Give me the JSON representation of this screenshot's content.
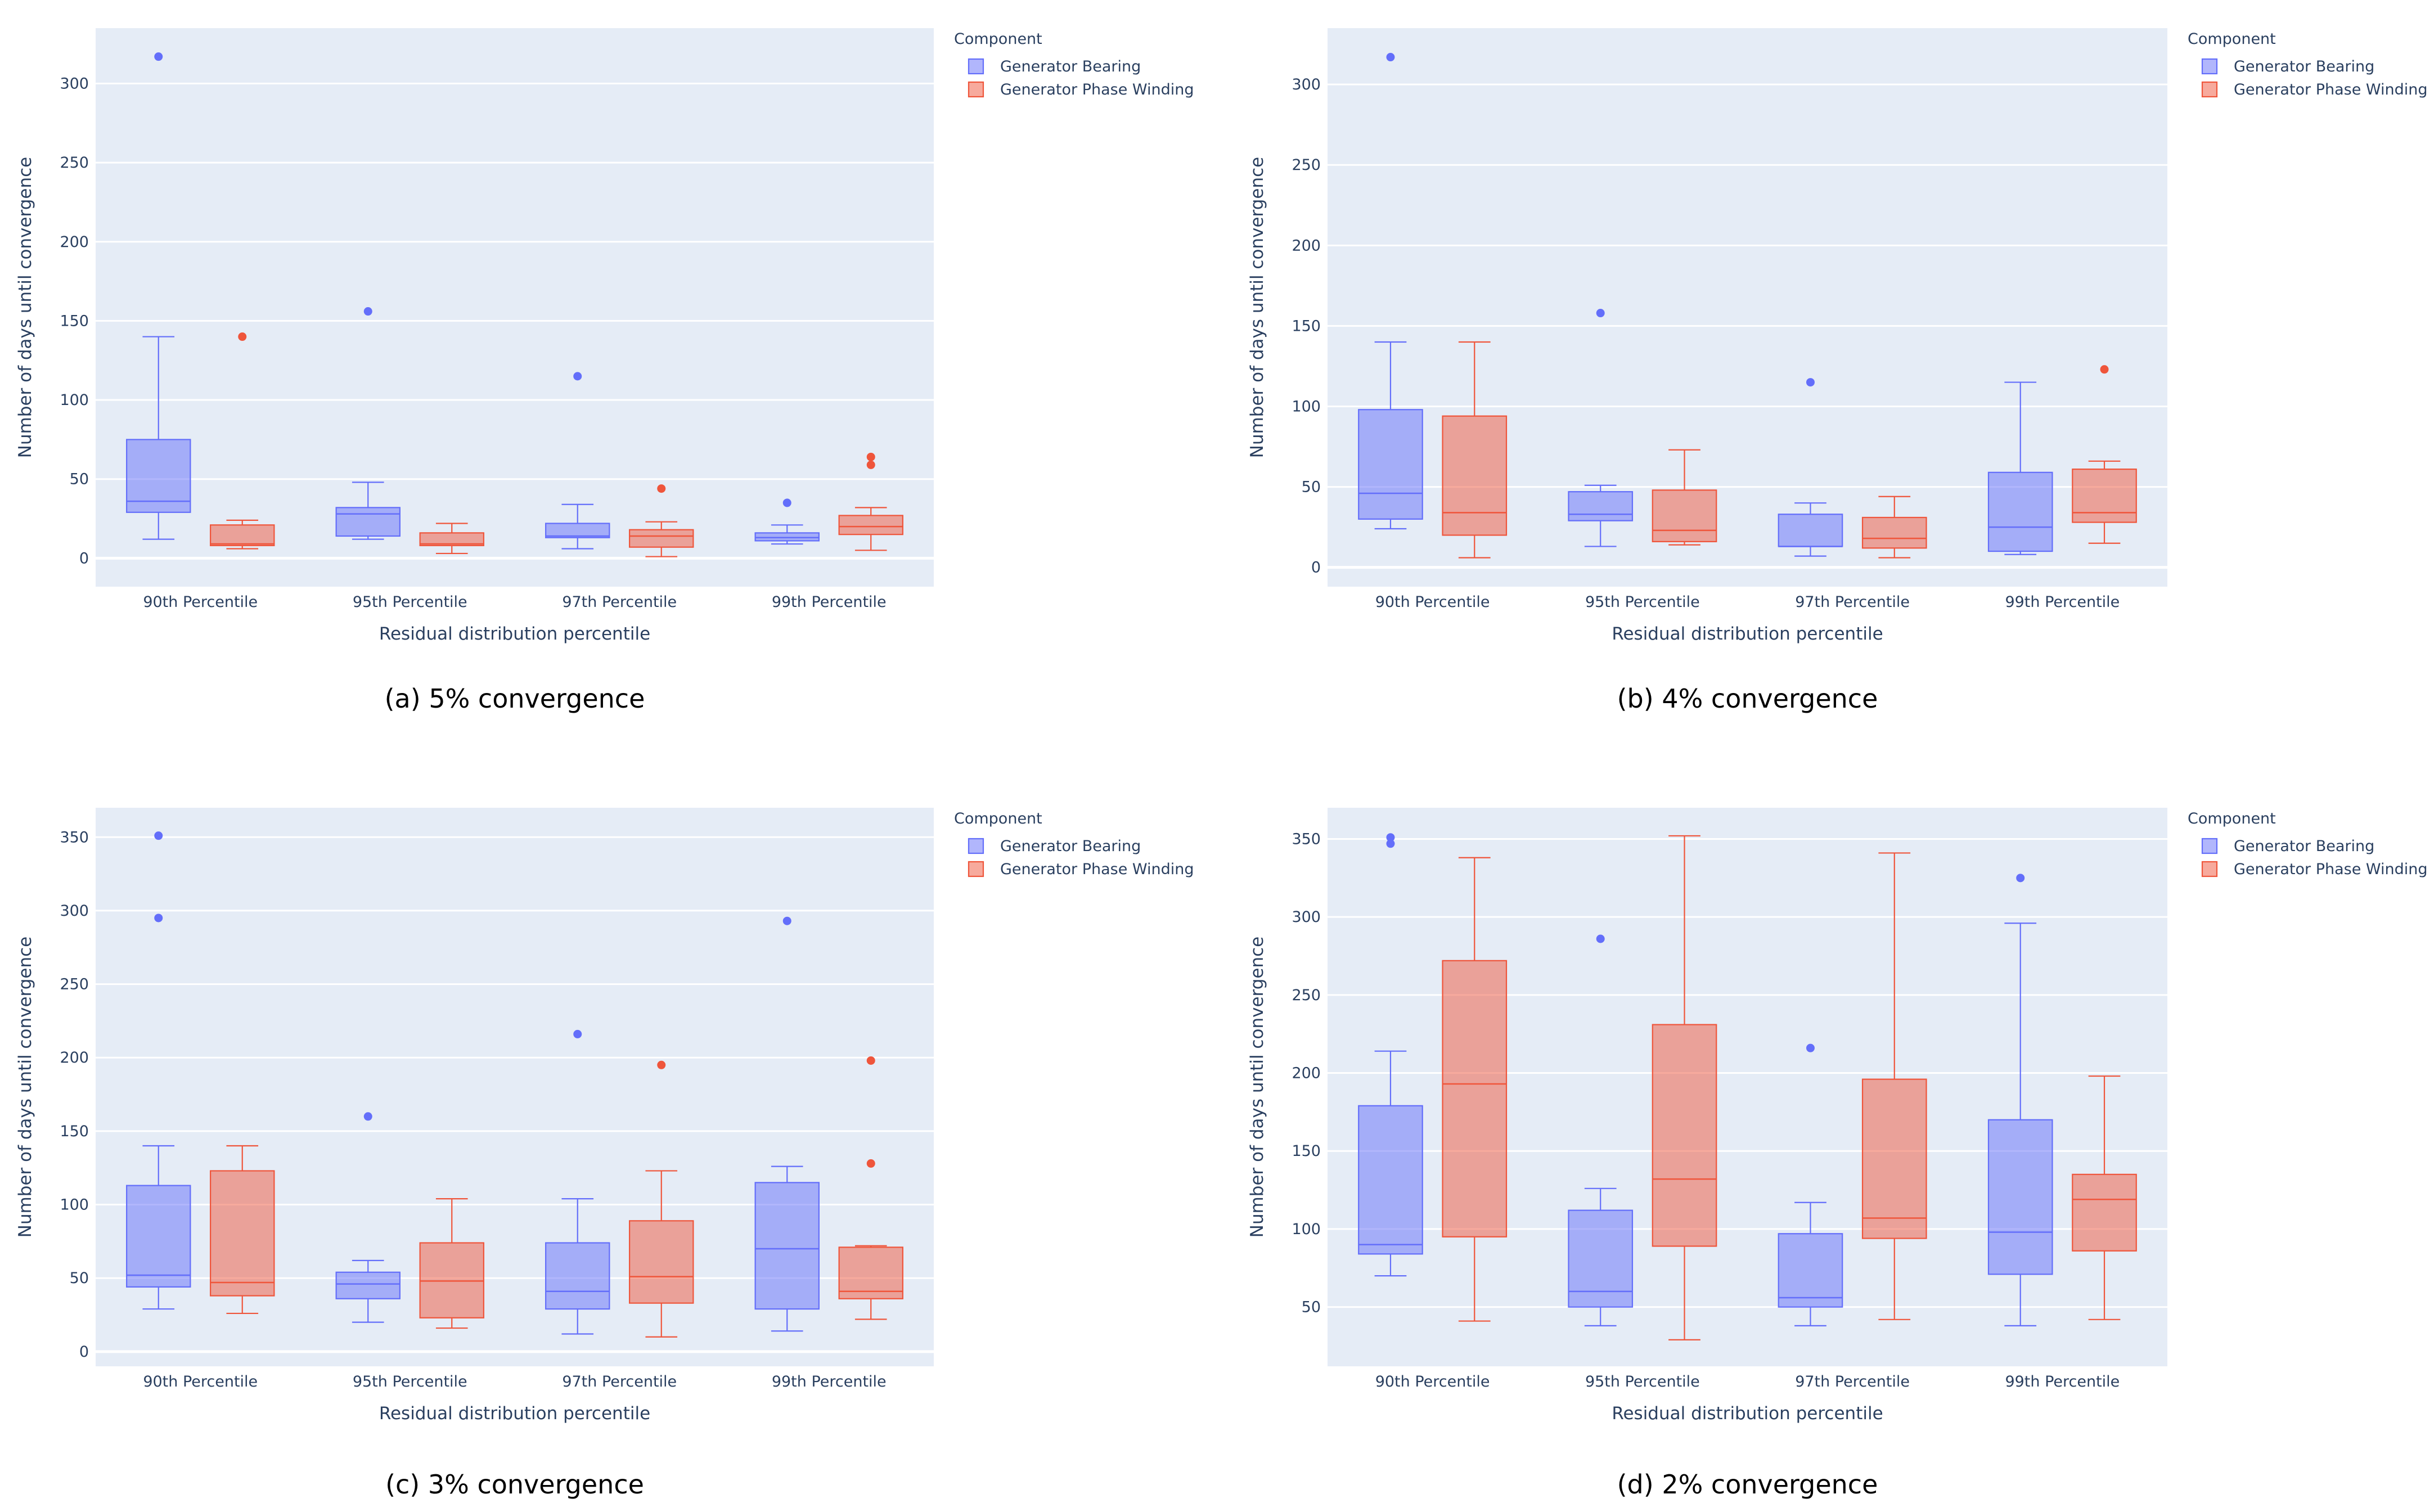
{
  "chart_data": [
    {
      "type": "box",
      "caption": "(a) 5% convergence",
      "xlabel": "Residual distribution percentile",
      "ylabel": "Number of days until convergence",
      "ylim": [
        -18,
        335
      ],
      "yticks": [
        0,
        50,
        100,
        150,
        200,
        250,
        300
      ],
      "categories": [
        "90th Percentile",
        "95th Percentile",
        "97th Percentile",
        "99th Percentile"
      ],
      "legend_title": "Component",
      "series": [
        {
          "name": "Generator Bearing",
          "color": "#636EFA",
          "boxes": [
            {
              "min": 12,
              "q1": 29,
              "median": 36,
              "q3": 75,
              "max": 140,
              "outliers": [
                317
              ]
            },
            {
              "min": 12,
              "q1": 14,
              "median": 28,
              "q3": 32,
              "max": 48,
              "outliers": [
                156
              ]
            },
            {
              "min": 6,
              "q1": 13,
              "median": 14,
              "q3": 22,
              "max": 34,
              "outliers": [
                115
              ]
            },
            {
              "min": 9,
              "q1": 11,
              "median": 13,
              "q3": 16,
              "max": 21,
              "outliers": [
                35
              ]
            }
          ]
        },
        {
          "name": "Generator Phase Winding",
          "color": "#EF553B",
          "boxes": [
            {
              "min": 6,
              "q1": 8,
              "median": 9,
              "q3": 21,
              "max": 24,
              "outliers": [
                140
              ]
            },
            {
              "min": 3,
              "q1": 8,
              "median": 9,
              "q3": 16,
              "max": 22,
              "outliers": []
            },
            {
              "min": 1,
              "q1": 7,
              "median": 14,
              "q3": 18,
              "max": 23,
              "outliers": [
                44
              ]
            },
            {
              "min": 5,
              "q1": 15,
              "median": 20,
              "q3": 27,
              "max": 32,
              "outliers": [
                59,
                64
              ]
            }
          ]
        }
      ]
    },
    {
      "type": "box",
      "caption": "(b) 4% convergence",
      "xlabel": "Residual distribution percentile",
      "ylabel": "Number of days until convergence",
      "ylim": [
        -12,
        335
      ],
      "yticks": [
        0,
        50,
        100,
        150,
        200,
        250,
        300
      ],
      "categories": [
        "90th Percentile",
        "95th Percentile",
        "97th Percentile",
        "99th Percentile"
      ],
      "legend_title": "Component",
      "series": [
        {
          "name": "Generator Bearing",
          "color": "#636EFA",
          "boxes": [
            {
              "min": 24,
              "q1": 30,
              "median": 46,
              "q3": 98,
              "max": 140,
              "outliers": [
                317
              ]
            },
            {
              "min": 13,
              "q1": 29,
              "median": 33,
              "q3": 47,
              "max": 51,
              "outliers": [
                158
              ]
            },
            {
              "min": 7,
              "q1": 13,
              "median": 13,
              "q3": 33,
              "max": 40,
              "outliers": [
                115
              ]
            },
            {
              "min": 8,
              "q1": 10,
              "median": 25,
              "q3": 59,
              "max": 115,
              "outliers": []
            }
          ]
        },
        {
          "name": "Generator Phase Winding",
          "color": "#EF553B",
          "boxes": [
            {
              "min": 6,
              "q1": 20,
              "median": 34,
              "q3": 94,
              "max": 140,
              "outliers": []
            },
            {
              "min": 14,
              "q1": 16,
              "median": 23,
              "q3": 48,
              "max": 73,
              "outliers": []
            },
            {
              "min": 6,
              "q1": 12,
              "median": 18,
              "q3": 31,
              "max": 44,
              "outliers": []
            },
            {
              "min": 15,
              "q1": 28,
              "median": 34,
              "q3": 61,
              "max": 66,
              "outliers": [
                123
              ]
            }
          ]
        }
      ]
    },
    {
      "type": "box",
      "caption": "(c) 3% convergence",
      "xlabel": "Residual distribution percentile",
      "ylabel": "Number of days until convergence",
      "ylim": [
        -10,
        370
      ],
      "yticks": [
        0,
        50,
        100,
        150,
        200,
        250,
        300,
        350
      ],
      "categories": [
        "90th Percentile",
        "95th Percentile",
        "97th Percentile",
        "99th Percentile"
      ],
      "legend_title": "Component",
      "series": [
        {
          "name": "Generator Bearing",
          "color": "#636EFA",
          "boxes": [
            {
              "min": 29,
              "q1": 44,
              "median": 52,
              "q3": 113,
              "max": 140,
              "outliers": [
                295,
                351
              ]
            },
            {
              "min": 20,
              "q1": 36,
              "median": 46,
              "q3": 54,
              "max": 62,
              "outliers": [
                160
              ]
            },
            {
              "min": 12,
              "q1": 29,
              "median": 41,
              "q3": 74,
              "max": 104,
              "outliers": [
                216
              ]
            },
            {
              "min": 14,
              "q1": 29,
              "median": 70,
              "q3": 115,
              "max": 126,
              "outliers": [
                293
              ]
            }
          ]
        },
        {
          "name": "Generator Phase Winding",
          "color": "#EF553B",
          "boxes": [
            {
              "min": 26,
              "q1": 38,
              "median": 47,
              "q3": 123,
              "max": 140,
              "outliers": []
            },
            {
              "min": 16,
              "q1": 23,
              "median": 48,
              "q3": 74,
              "max": 104,
              "outliers": []
            },
            {
              "min": 10,
              "q1": 33,
              "median": 51,
              "q3": 89,
              "max": 123,
              "outliers": [
                195
              ]
            },
            {
              "min": 22,
              "q1": 36,
              "median": 41,
              "q3": 71,
              "max": 72,
              "outliers": [
                128,
                198
              ]
            }
          ]
        }
      ]
    },
    {
      "type": "box",
      "caption": "(d) 2% convergence",
      "xlabel": "Residual distribution percentile",
      "ylabel": "Number of days until convergence",
      "ylim": [
        12,
        370
      ],
      "yticks": [
        50,
        100,
        150,
        200,
        250,
        300,
        350
      ],
      "categories": [
        "90th Percentile",
        "95th Percentile",
        "97th Percentile",
        "99th Percentile"
      ],
      "legend_title": "Component",
      "series": [
        {
          "name": "Generator Bearing",
          "color": "#636EFA",
          "boxes": [
            {
              "min": 70,
              "q1": 84,
              "median": 90,
              "q3": 179,
              "max": 214,
              "outliers": [
                347,
                351
              ]
            },
            {
              "min": 38,
              "q1": 50,
              "median": 60,
              "q3": 112,
              "max": 126,
              "outliers": [
                286
              ]
            },
            {
              "min": 38,
              "q1": 50,
              "median": 56,
              "q3": 97,
              "max": 117,
              "outliers": [
                216
              ]
            },
            {
              "min": 38,
              "q1": 71,
              "median": 98,
              "q3": 170,
              "max": 296,
              "outliers": [
                325
              ]
            }
          ]
        },
        {
          "name": "Generator Phase Winding",
          "color": "#EF553B",
          "boxes": [
            {
              "min": 41,
              "q1": 95,
              "median": 193,
              "q3": 272,
              "max": 338,
              "outliers": []
            },
            {
              "min": 29,
              "q1": 89,
              "median": 132,
              "q3": 231,
              "max": 352,
              "outliers": []
            },
            {
              "min": 42,
              "q1": 94,
              "median": 107,
              "q3": 196,
              "max": 341,
              "outliers": []
            },
            {
              "min": 42,
              "q1": 86,
              "median": 119,
              "q3": 135,
              "max": 198,
              "outliers": []
            }
          ]
        }
      ]
    }
  ]
}
